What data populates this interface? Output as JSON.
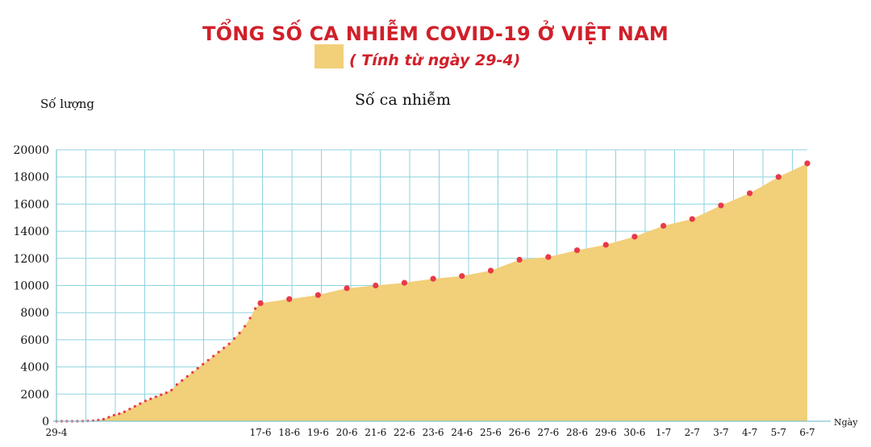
{
  "chart_data": {
    "type": "area",
    "title": "TỔNG SỐ CA NHIỄM COVID-19 Ở VIỆT NAM",
    "subtitle": "( Tính từ ngày 29-4)",
    "ylabel": "Số lượng",
    "xlabel": "Ngày",
    "series_label": "Số ca nhiễm",
    "ylim": [
      0,
      20000
    ],
    "yticks": [
      0,
      2000,
      4000,
      6000,
      8000,
      10000,
      12000,
      14000,
      16000,
      18000,
      20000
    ],
    "grid": true,
    "colors": {
      "fill": "#f2cf79",
      "marker": "#e8394a",
      "grid": "#8fd3df",
      "axis": "#7fc4d2"
    },
    "early": {
      "label": "29-4",
      "count": 100,
      "values": [
        0,
        0,
        0,
        0,
        0,
        10,
        20,
        40,
        80,
        150,
        300,
        450,
        550,
        700,
        900,
        1100,
        1300,
        1500,
        1650,
        1800,
        1950,
        2100,
        2300,
        2700,
        3000,
        3300,
        3600,
        3900,
        4200,
        4500,
        4800,
        5100,
        5400,
        5700,
        6100,
        6500,
        7000,
        7600,
        8300,
        8700
      ]
    },
    "categories": [
      "17-6",
      "18-6",
      "19-6",
      "20-6",
      "21-6",
      "22-6",
      "23-6",
      "24-6",
      "25-6",
      "26-6",
      "27-6",
      "28-6",
      "29-6",
      "30-6",
      "1-7",
      "2-7",
      "3-7",
      "4-7",
      "5-7",
      "6-7"
    ],
    "values": [
      8700,
      9000,
      9300,
      9800,
      10000,
      10200,
      10500,
      10700,
      11100,
      11900,
      12100,
      12600,
      13000,
      13600,
      14400,
      14900,
      15900,
      16800,
      18000,
      19000
    ]
  }
}
